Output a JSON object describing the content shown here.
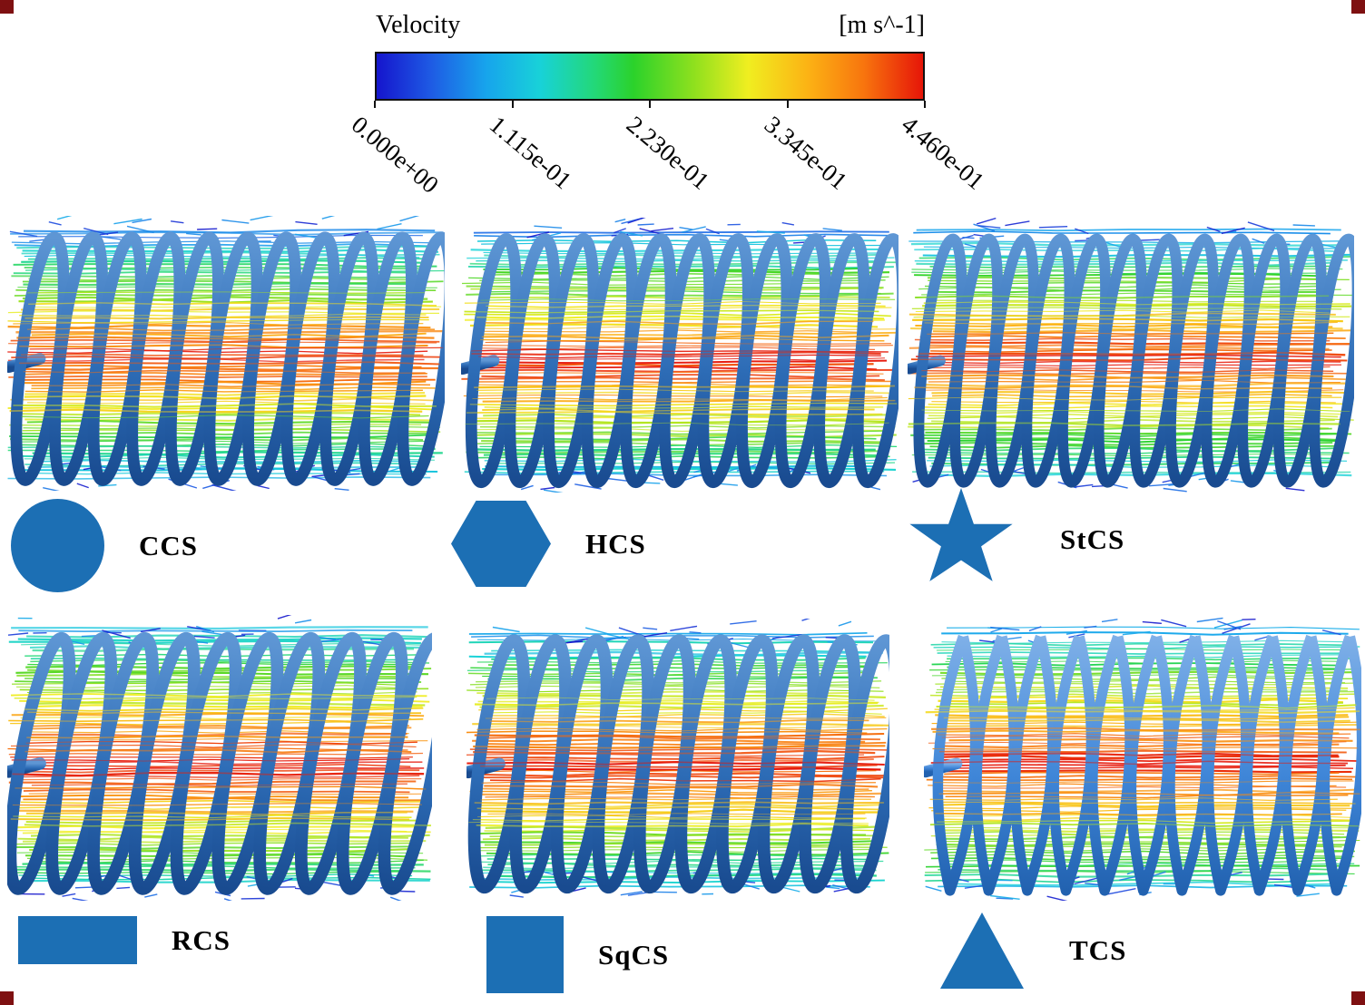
{
  "colorbar": {
    "title": "Velocity",
    "units": "[m s^-1]",
    "ticks": [
      "0.000e+00",
      "1.115e-01",
      "2.230e-01",
      "3.345e-01",
      "4.460e-01"
    ],
    "stops": [
      {
        "t": 0.0,
        "c": "#1515cd"
      },
      {
        "t": 0.1,
        "c": "#1e5be4"
      },
      {
        "t": 0.2,
        "c": "#17a4ec"
      },
      {
        "t": 0.3,
        "c": "#18d2d8"
      },
      {
        "t": 0.4,
        "c": "#23d877"
      },
      {
        "t": 0.47,
        "c": "#2bd22b"
      },
      {
        "t": 0.58,
        "c": "#8ee01e"
      },
      {
        "t": 0.68,
        "c": "#f0ee20"
      },
      {
        "t": 0.79,
        "c": "#fcb214"
      },
      {
        "t": 0.89,
        "c": "#f8760e"
      },
      {
        "t": 1.0,
        "c": "#e61508"
      }
    ]
  },
  "icon_color": "#1c6fb4",
  "panels": [
    {
      "label": "CCS",
      "icon": "circle-icon",
      "coils": 11,
      "tilt": 7,
      "shape": "ellipse",
      "gamma": 1.0,
      "seed": 101,
      "coil_light": "#5e96d4",
      "coil_base": "#2d6cb6",
      "coil_dark": "#194b90"
    },
    {
      "label": "HCS",
      "icon": "hexagon-icon",
      "coils": 11,
      "tilt": 6,
      "shape": "ellipse",
      "gamma": 0.95,
      "seed": 202,
      "coil_light": "#5e96d4",
      "coil_base": "#2d6cb6",
      "coil_dark": "#194b90"
    },
    {
      "label": "StCS",
      "icon": "star-icon",
      "coils": 12,
      "tilt": 6,
      "shape": "ellipse",
      "gamma": 0.95,
      "seed": 303,
      "coil_light": "#5e96d4",
      "coil_base": "#2d6cb6",
      "coil_dark": "#194b90"
    },
    {
      "label": "RCS",
      "icon": "rectangle-icon",
      "coils": 10,
      "tilt": 10,
      "shape": "ellipse",
      "gamma": 0.8,
      "seed": 404,
      "coil_light": "#5e96d4",
      "coil_base": "#2d6cb6",
      "coil_dark": "#194b90"
    },
    {
      "label": "SqCS",
      "icon": "square-icon",
      "coils": 10,
      "tilt": 7,
      "shape": "ellipse",
      "gamma": 0.85,
      "seed": 505,
      "coil_light": "#5e96d4",
      "coil_base": "#2d6cb6",
      "coil_dark": "#194b90"
    },
    {
      "label": "TCS",
      "icon": "triangle-icon",
      "coils": 11,
      "tilt": 3,
      "shape": "lens",
      "gamma": 0.8,
      "seed": 606,
      "coil_light": "#7fb0e8",
      "coil_base": "#3f86d8",
      "coil_dark": "#2262b0"
    }
  ]
}
